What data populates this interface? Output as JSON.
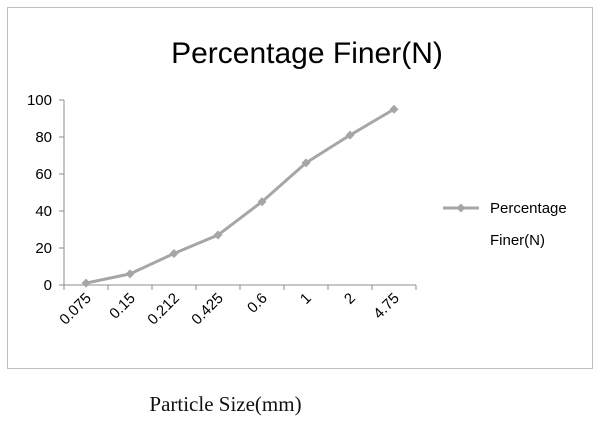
{
  "chart_data": {
    "type": "line",
    "title": "Percentage Finer(N)",
    "xlabel": "Particle Size(mm)",
    "ylabel": "",
    "categories": [
      "0.075",
      "0.15",
      "0.212",
      "0.425",
      "0.6",
      "1",
      "2",
      "4.75"
    ],
    "series": [
      {
        "name": "Percentage Finer(N)",
        "values": [
          1,
          6,
          17,
          27,
          45,
          66,
          81,
          95
        ],
        "color": "#a6a6a6"
      }
    ],
    "ylim": [
      0,
      100
    ],
    "yticks": [
      "0",
      "20",
      "40",
      "60",
      "80",
      "100"
    ],
    "grid": false,
    "legend": "right",
    "legend_label_lines": [
      "Percentage",
      "Finer(N)"
    ],
    "marker": "diamond"
  }
}
